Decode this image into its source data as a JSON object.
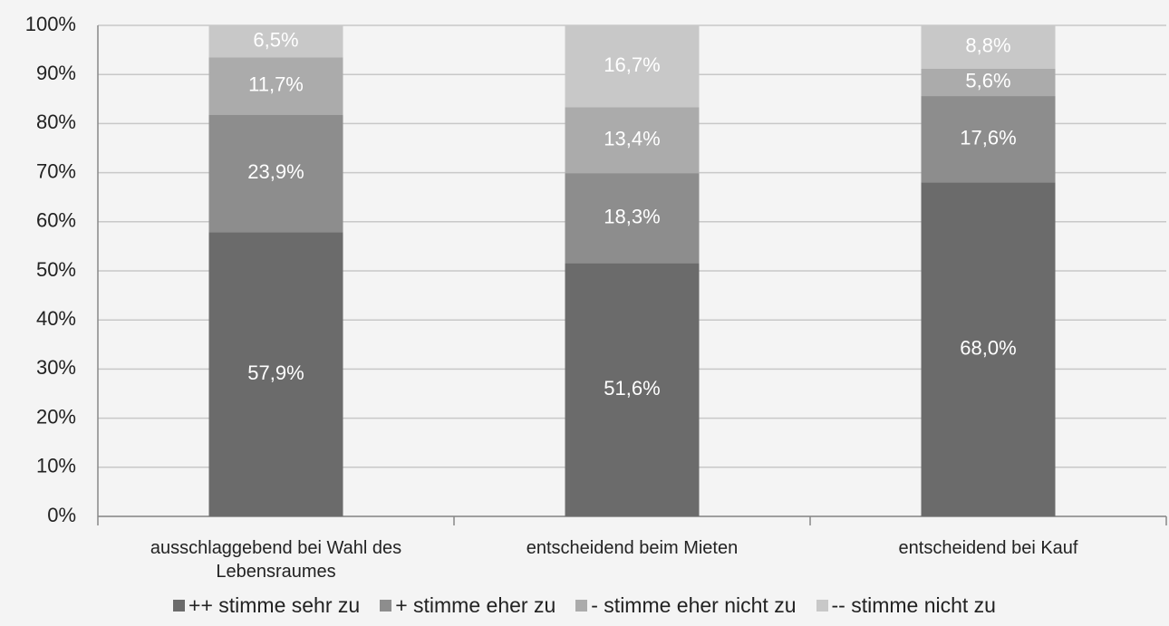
{
  "chart_data": {
    "type": "stacked_bar",
    "categories": [
      "ausschlaggebend bei Wahl des Lebensraumes",
      "entscheidend beim Mieten",
      "entscheidend bei Kauf"
    ],
    "series": [
      {
        "name": "++ stimme sehr zu",
        "color": "#6b6b6b",
        "values": [
          57.9,
          51.6,
          68.0
        ],
        "value_labels": [
          "57,9%",
          "51,6%",
          "68,0%"
        ]
      },
      {
        "name": "+ stimme eher zu",
        "color": "#8d8d8d",
        "values": [
          23.9,
          18.3,
          17.6
        ],
        "value_labels": [
          "23,9%",
          "18,3%",
          "17,6%"
        ]
      },
      {
        "name": "- stimme eher nicht zu",
        "color": "#ababab",
        "values": [
          11.7,
          13.4,
          5.6
        ],
        "value_labels": [
          "11,7%",
          "13,4%",
          "5,6%"
        ]
      },
      {
        "name": "-- stimme nicht zu",
        "color": "#c8c8c8",
        "values": [
          6.5,
          16.7,
          8.8
        ],
        "value_labels": [
          "6,5%",
          "16,7%",
          "8,8%"
        ]
      }
    ],
    "ylim": [
      0,
      100
    ],
    "yticks": [
      {
        "value": 0,
        "label": "0%"
      },
      {
        "value": 10,
        "label": "10%"
      },
      {
        "value": 20,
        "label": "20%"
      },
      {
        "value": 30,
        "label": "30%"
      },
      {
        "value": 40,
        "label": "40%"
      },
      {
        "value": 50,
        "label": "50%"
      },
      {
        "value": 60,
        "label": "60%"
      },
      {
        "value": 70,
        "label": "70%"
      },
      {
        "value": 80,
        "label": "80%"
      },
      {
        "value": 90,
        "label": "90%"
      },
      {
        "value": 100,
        "label": "100%"
      }
    ],
    "grid": true,
    "legend": "bottom"
  }
}
